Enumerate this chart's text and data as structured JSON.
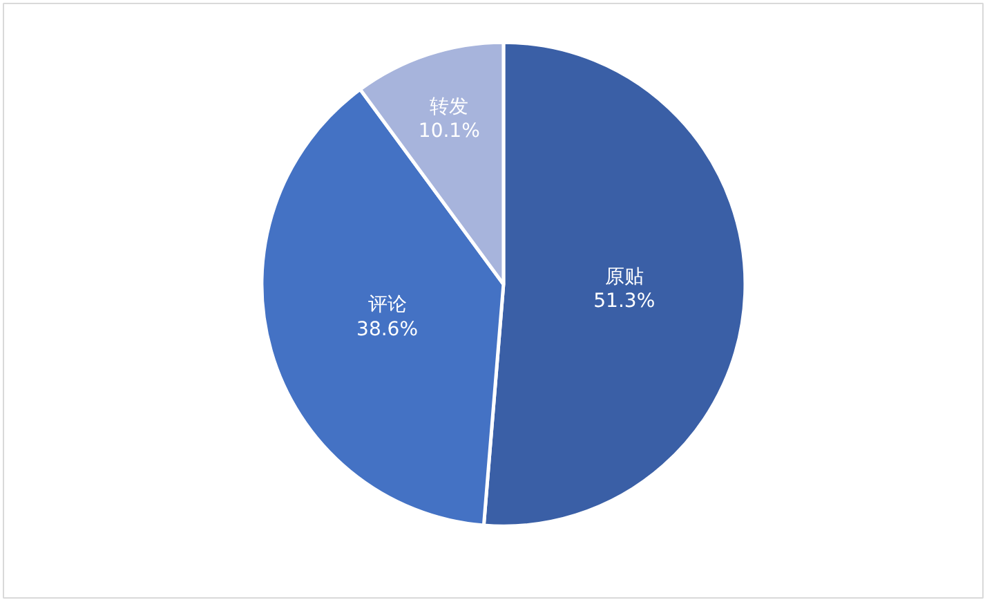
{
  "chart_data": {
    "type": "pie",
    "categories": [
      "原贴",
      "评论",
      "转发"
    ],
    "values": [
      51.3,
      38.6,
      10.1
    ],
    "value_labels": [
      "51.3%",
      "38.6%",
      "10.1%"
    ],
    "colors": [
      "#3a5fa6",
      "#4472c4",
      "#a7b4dc"
    ]
  }
}
